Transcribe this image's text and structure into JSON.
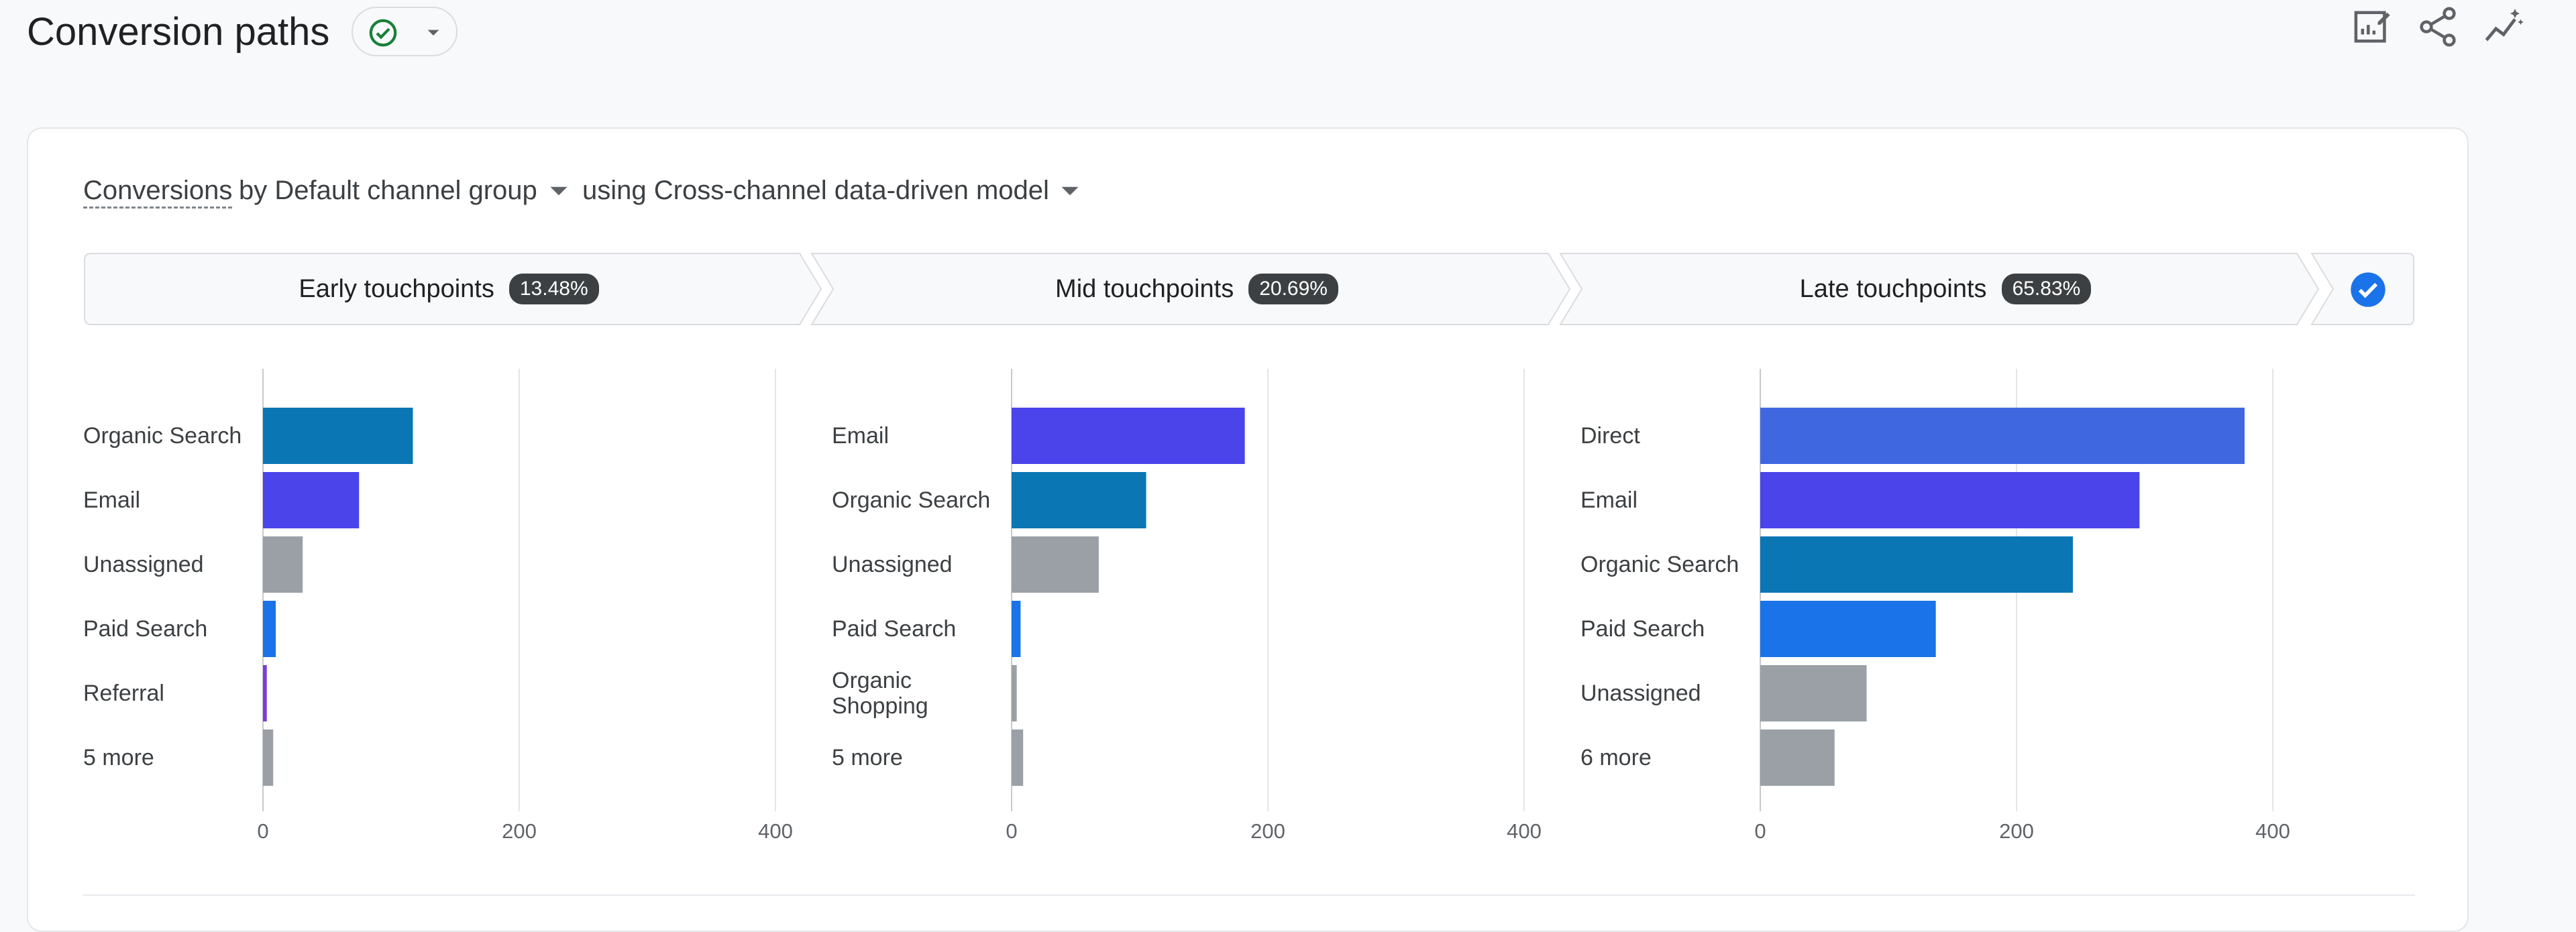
{
  "header": {
    "title": "Conversion paths",
    "status_icon": "check-circle-icon",
    "status_color": "#188038",
    "actions": [
      "edit-report-icon",
      "share-icon",
      "insights-icon"
    ]
  },
  "selector": {
    "metric": "Conversions",
    "by_text": "by Default channel group",
    "model_text": "using Cross-channel data-driven model"
  },
  "stages": [
    {
      "label": "Early touchpoints",
      "percent": "13.48%"
    },
    {
      "label": "Mid touchpoints",
      "percent": "20.69%"
    },
    {
      "label": "Late touchpoints",
      "percent": "65.83%"
    }
  ],
  "stage_toggle": {
    "icon": "check-circle-icon",
    "color": "#1a73e8"
  },
  "colors": {
    "organic_search": "#0b76b4",
    "email": "#4a44ea",
    "unassigned": "#9aa0a6",
    "paid_search": "#1a73e8",
    "referral": "#7a3fd6",
    "direct": "#3f68e0",
    "more": "#9aa0a6"
  },
  "chart_data": [
    {
      "type": "bar",
      "orientation": "horizontal",
      "categories": [
        "Organic Search",
        "Email",
        "Unassigned",
        "Paid Search",
        "Referral",
        "5 more"
      ],
      "values": [
        117,
        75,
        31,
        10,
        3,
        8
      ],
      "color_keys": [
        "organic_search",
        "email",
        "unassigned",
        "paid_search",
        "referral",
        "more"
      ],
      "xlim": [
        0,
        400
      ],
      "ticks": [
        "0",
        "200",
        "400"
      ]
    },
    {
      "type": "bar",
      "orientation": "horizontal",
      "categories": [
        "Email",
        "Organic Search",
        "Unassigned",
        "Paid Search",
        "Organic Shopping",
        "5 more"
      ],
      "values": [
        182,
        105,
        68,
        7,
        4,
        9
      ],
      "color_keys": [
        "email",
        "organic_search",
        "unassigned",
        "paid_search",
        "more",
        "more"
      ],
      "xlim": [
        0,
        400
      ],
      "ticks": [
        "0",
        "200",
        "400"
      ]
    },
    {
      "type": "bar",
      "orientation": "horizontal",
      "categories": [
        "Direct",
        "Email",
        "Organic Search",
        "Paid Search",
        "Unassigned",
        "6 more"
      ],
      "values": [
        378,
        296,
        244,
        137,
        83,
        58
      ],
      "color_keys": [
        "direct",
        "email",
        "organic_search",
        "paid_search",
        "unassigned",
        "more"
      ],
      "xlim": [
        0,
        400
      ],
      "ticks": [
        "0",
        "200",
        "400"
      ]
    }
  ]
}
